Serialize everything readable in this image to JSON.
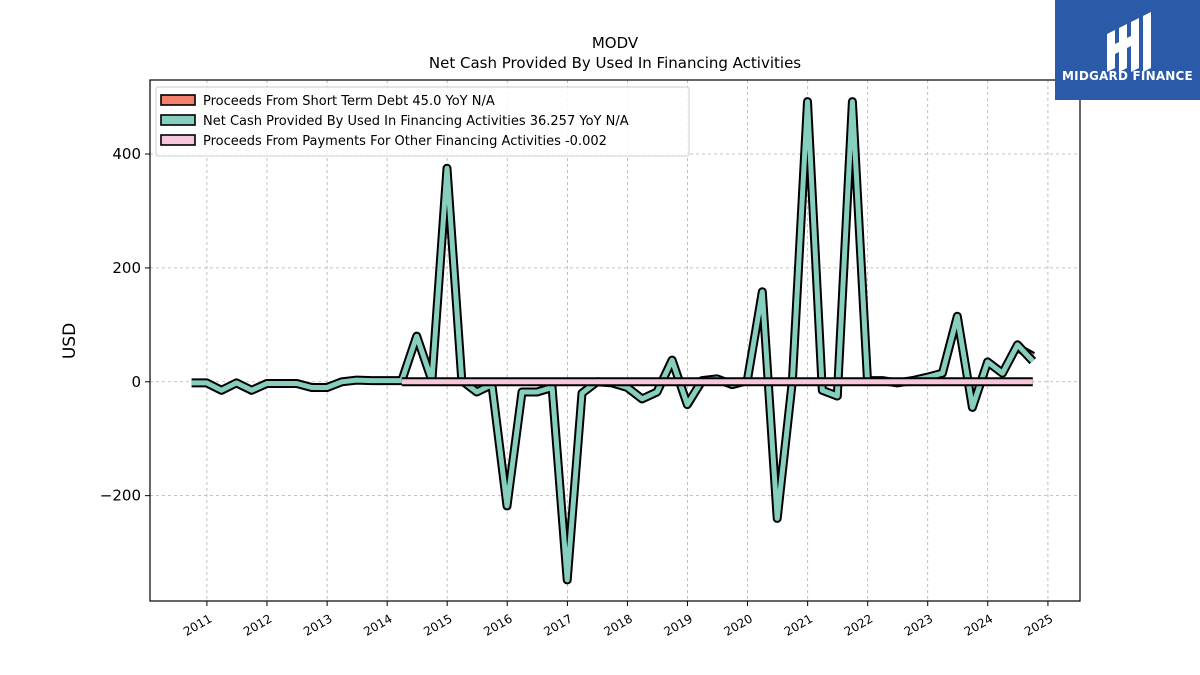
{
  "brand": {
    "name": "MIDGARD FINANCE",
    "bg_color": "#2b5aa8"
  },
  "chart_data": {
    "type": "line",
    "title": "MODV",
    "subtitle": "Net Cash Provided By Used In Financing Activities",
    "ylabel": "USD",
    "xlabel": "",
    "ylim": [
      -385,
      530
    ],
    "xlim": [
      "2010-01-20",
      "2025-07-15"
    ],
    "yticks": [
      -200,
      0,
      200,
      400
    ],
    "xticks": [
      "2011",
      "2012",
      "2013",
      "2014",
      "2015",
      "2016",
      "2017",
      "2018",
      "2019",
      "2020",
      "2021",
      "2022",
      "2023",
      "2024",
      "2025"
    ],
    "grid": true,
    "legend_position": "top-left",
    "series": [
      {
        "name": "Proceeds From Short Term Debt",
        "legend_label": "Proceeds From Short Term Debt  45.0 YoY N/A",
        "color": "#f47f6b",
        "points": [
          [
            "2024-06-30",
            60
          ],
          [
            "2024-10-01",
            45.0
          ]
        ]
      },
      {
        "name": "Net Cash Provided By Used In Financing Activities",
        "legend_label": "Net Cash Provided By Used In Financing Activities  36.257 YoY N/A",
        "color": "#86cfbf",
        "points": [
          [
            "2010-09-30",
            -2
          ],
          [
            "2010-12-31",
            -2
          ],
          [
            "2011-03-31",
            -15
          ],
          [
            "2011-06-30",
            -2
          ],
          [
            "2011-09-30",
            -15
          ],
          [
            "2011-12-31",
            -3
          ],
          [
            "2012-03-31",
            -3
          ],
          [
            "2012-06-30",
            -3
          ],
          [
            "2012-09-30",
            -10
          ],
          [
            "2012-12-31",
            -10
          ],
          [
            "2013-03-31",
            0
          ],
          [
            "2013-06-30",
            3
          ],
          [
            "2013-09-30",
            2
          ],
          [
            "2013-12-31",
            2
          ],
          [
            "2014-03-31",
            2
          ],
          [
            "2014-06-30",
            80
          ],
          [
            "2014-09-30",
            2
          ],
          [
            "2014-12-31",
            375
          ],
          [
            "2015-03-31",
            2
          ],
          [
            "2015-06-30",
            -18
          ],
          [
            "2015-09-30",
            -5
          ],
          [
            "2015-12-31",
            -218
          ],
          [
            "2016-03-31",
            -18
          ],
          [
            "2016-06-30",
            -18
          ],
          [
            "2016-09-30",
            -10
          ],
          [
            "2016-12-31",
            -348
          ],
          [
            "2017-03-31",
            -20
          ],
          [
            "2017-06-30",
            0
          ],
          [
            "2017-09-30",
            -2
          ],
          [
            "2017-12-31",
            -10
          ],
          [
            "2018-03-31",
            -30
          ],
          [
            "2018-06-30",
            -18
          ],
          [
            "2018-09-30",
            38
          ],
          [
            "2018-12-31",
            -40
          ],
          [
            "2019-03-31",
            2
          ],
          [
            "2019-06-30",
            5
          ],
          [
            "2019-09-30",
            -5
          ],
          [
            "2019-12-31",
            2
          ],
          [
            "2020-03-31",
            158
          ],
          [
            "2020-06-30",
            -240
          ],
          [
            "2020-09-30",
            2
          ],
          [
            "2020-12-31",
            492
          ],
          [
            "2021-03-31",
            -15
          ],
          [
            "2021-06-30",
            -25
          ],
          [
            "2021-09-30",
            492
          ],
          [
            "2021-12-31",
            2
          ],
          [
            "2022-03-31",
            2
          ],
          [
            "2022-06-30",
            -2
          ],
          [
            "2022-09-30",
            2
          ],
          [
            "2022-12-31",
            8
          ],
          [
            "2023-03-31",
            15
          ],
          [
            "2023-06-30",
            115
          ],
          [
            "2023-09-30",
            -45
          ],
          [
            "2023-12-31",
            35
          ],
          [
            "2024-03-31",
            15
          ],
          [
            "2024-06-30",
            65
          ],
          [
            "2024-10-01",
            36.257
          ]
        ]
      },
      {
        "name": "Proceeds From Payments For Other Financing Activities",
        "legend_label": "Proceeds From Payments For Other Financing Activities  -0.002",
        "color": "#f7c6dc",
        "points": [
          [
            "2014-03-31",
            0
          ],
          [
            "2024-10-01",
            -0.002
          ]
        ]
      }
    ]
  }
}
